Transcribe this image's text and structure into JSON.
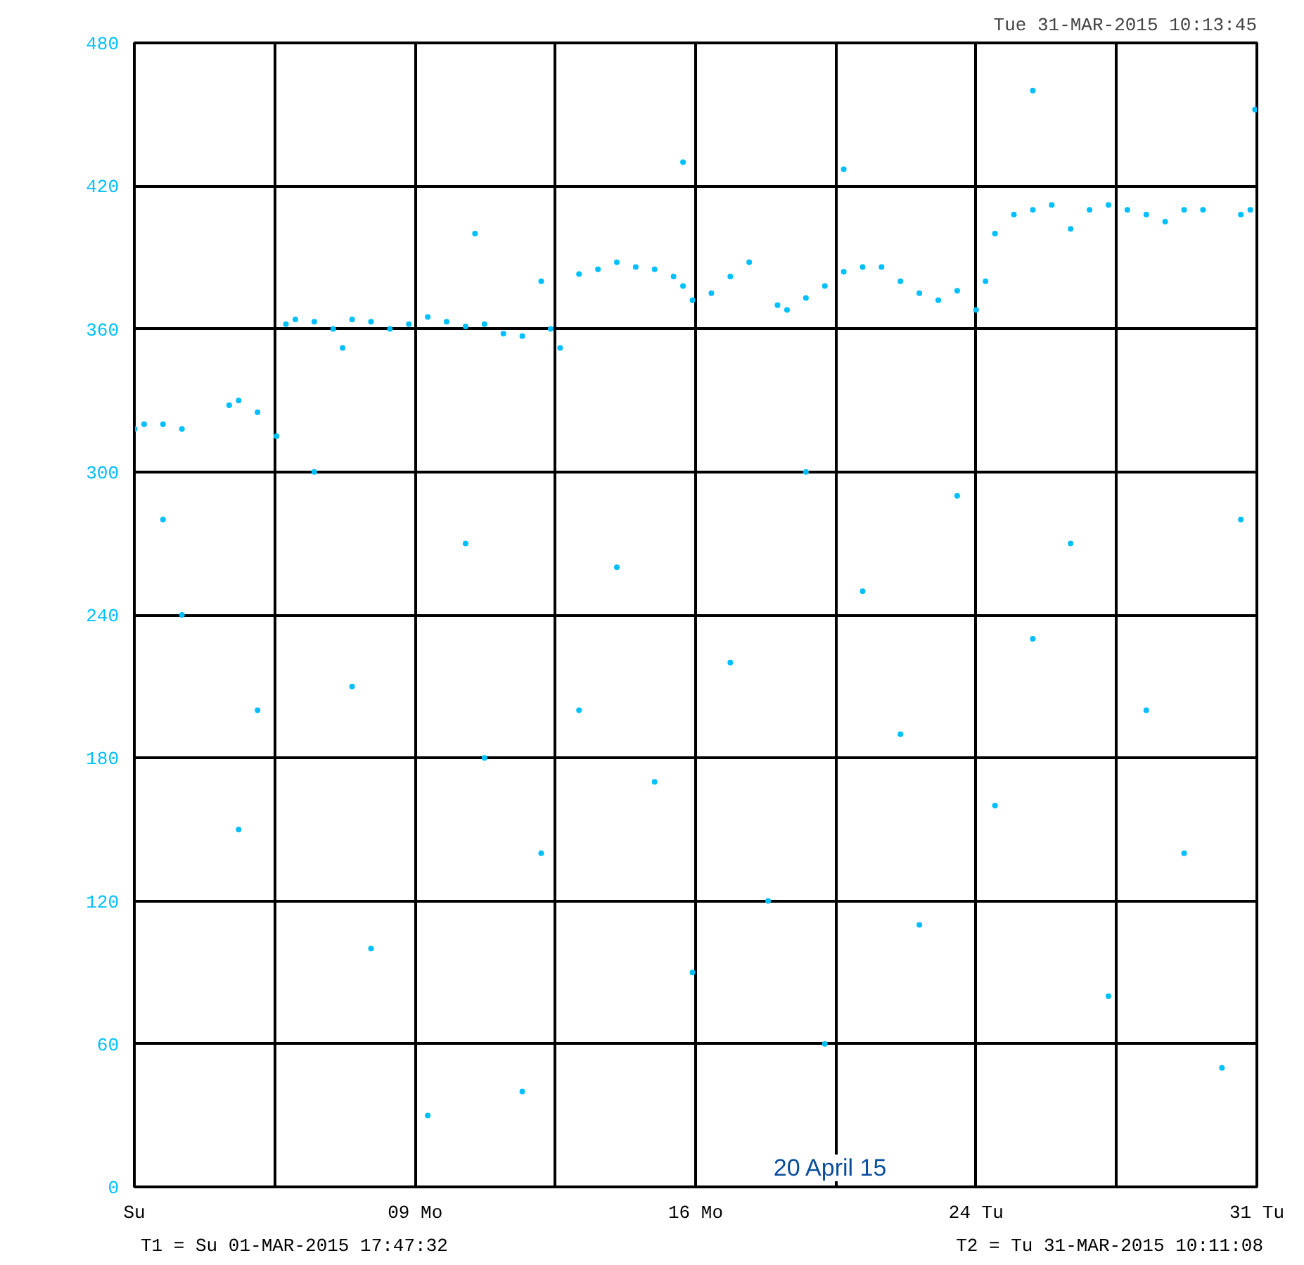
{
  "chart_data": {
    "type": "scatter",
    "title": "Tue 31-MAR-2015 10:13:45",
    "annotations": [
      "T1 = Su 01-MAR-2015 17:47:32",
      "T2 = Tu 31-MAR-2015 10:11:08",
      "20 April 15"
    ],
    "xlim": [
      "2015-03-01T17:47:32",
      "2015-03-31T10:11:08"
    ],
    "xticks": [
      {
        "value": "2015-03-01T17:47:32",
        "label": "Su"
      },
      {
        "value": "2015-03-05T10:49",
        "label": null
      },
      {
        "value": "2015-03-09T04:00",
        "label": "09 Mo"
      },
      {
        "value": "2015-03-12T20:58",
        "label": null
      },
      {
        "value": "2015-03-16T14:00",
        "label": "16 Mo"
      },
      {
        "value": "2015-03-20T07:00",
        "label": null
      },
      {
        "value": "2015-03-24T00:00",
        "label": "24 Tu"
      },
      {
        "value": "2015-03-27T17:05",
        "label": null
      },
      {
        "value": "2015-03-31T10:11:08",
        "label": "31 Tu"
      }
    ],
    "ylim": [
      0,
      480
    ],
    "yticks": [
      0,
      60,
      120,
      180,
      240,
      300,
      360,
      420,
      480
    ],
    "grid": true,
    "marker": "circle",
    "series": [
      {
        "color": "#00bfff",
        "x": [
          "2015-03-01T18:00",
          "2015-03-02T00:00",
          "2015-03-02T12:00",
          "2015-03-03T00:00",
          "2015-03-04T06:00",
          "2015-03-04T12:00",
          "2015-03-05T00:00",
          "2015-03-05T12:00",
          "2015-03-05T18:00",
          "2015-03-06T00:00",
          "2015-03-06T12:00",
          "2015-03-07T00:00",
          "2015-03-07T06:00",
          "2015-03-07T12:00",
          "2015-03-08T00:00",
          "2015-03-08T12:00",
          "2015-03-09T00:00",
          "2015-03-09T12:00",
          "2015-03-10T00:00",
          "2015-03-10T12:00",
          "2015-03-10T18:00",
          "2015-03-11T00:00",
          "2015-03-11T12:00",
          "2015-03-12T00:00",
          "2015-03-12T12:00",
          "2015-03-12T18:00",
          "2015-03-13T00:00",
          "2015-03-13T12:00",
          "2015-03-14T00:00",
          "2015-03-14T12:00",
          "2015-03-15T00:00",
          "2015-03-15T12:00",
          "2015-03-16T00:00",
          "2015-03-16T06:00",
          "2015-03-16T06:00",
          "2015-03-16T12:00",
          "2015-03-17T00:00",
          "2015-03-17T12:00",
          "2015-03-18T00:00",
          "2015-03-18T18:00",
          "2015-03-19T00:00",
          "2015-03-19T12:00",
          "2015-03-20T00:00",
          "2015-03-20T12:00",
          "2015-03-20T12:00",
          "2015-03-21T00:00",
          "2015-03-21T12:00",
          "2015-03-22T00:00",
          "2015-03-22T12:00",
          "2015-03-23T00:00",
          "2015-03-23T12:00",
          "2015-03-24T00:00",
          "2015-03-24T06:00",
          "2015-03-24T12:00",
          "2015-03-25T00:00",
          "2015-03-25T12:00",
          "2015-03-25T12:00",
          "2015-03-26T00:00",
          "2015-03-26T12:00",
          "2015-03-27T00:00",
          "2015-03-27T12:00",
          "2015-03-28T00:00",
          "2015-03-28T12:00",
          "2015-03-29T00:00",
          "2015-03-29T12:00",
          "2015-03-30T00:00",
          "2015-03-31T00:00",
          "2015-03-31T06:00",
          "2015-03-31T09:00",
          "2015-03-02T12:00",
          "2015-03-03T00:00",
          "2015-03-04T12:00",
          "2015-03-05T00:00",
          "2015-03-06T12:00",
          "2015-03-07T12:00",
          "2015-03-08T00:00",
          "2015-03-09T12:00",
          "2015-03-10T12:00",
          "2015-03-11T00:00",
          "2015-03-12T00:00",
          "2015-03-12T12:00",
          "2015-03-13T12:00",
          "2015-03-14T12:00",
          "2015-03-15T12:00",
          "2015-03-16T12:00",
          "2015-03-17T12:00",
          "2015-03-18T12:00",
          "2015-03-19T12:00",
          "2015-03-20T00:00",
          "2015-03-21T00:00",
          "2015-03-22T00:00",
          "2015-03-22T12:00",
          "2015-03-23T12:00",
          "2015-03-24T12:00",
          "2015-03-25T12:00",
          "2015-03-26T12:00",
          "2015-03-27T12:00",
          "2015-03-28T12:00",
          "2015-03-29T12:00",
          "2015-03-30T12:00",
          "2015-03-31T00:00"
        ],
        "values": [
          318,
          320,
          320,
          318,
          328,
          330,
          325,
          315,
          362,
          364,
          363,
          360,
          352,
          364,
          363,
          360,
          362,
          365,
          363,
          361,
          400,
          362,
          358,
          357,
          380,
          360,
          352,
          383,
          385,
          388,
          386,
          385,
          382,
          378,
          430,
          372,
          375,
          382,
          388,
          370,
          368,
          373,
          378,
          384,
          427,
          386,
          386,
          380,
          375,
          372,
          376,
          368,
          380,
          400,
          408,
          410,
          460,
          412,
          402,
          410,
          412,
          410,
          408,
          405,
          410,
          410,
          408,
          410,
          452,
          280,
          240,
          150,
          200,
          300,
          210,
          100,
          30,
          270,
          180,
          40,
          140,
          200,
          260,
          170,
          90,
          220,
          120,
          300,
          60,
          250,
          190,
          110,
          290,
          160,
          230,
          270,
          80,
          200,
          140,
          50,
          280
        ]
      }
    ]
  }
}
